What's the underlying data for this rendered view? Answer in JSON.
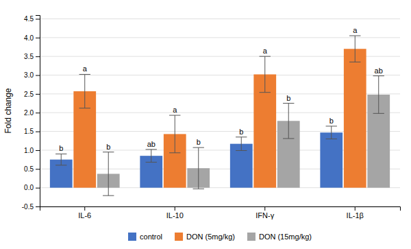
{
  "chart_data": {
    "type": "bar",
    "categories": [
      "IL-6",
      "IL-10",
      "IFN-γ",
      "IL-1β"
    ],
    "series": [
      {
        "name": "control",
        "color": "#4472C4",
        "values": [
          0.75,
          0.85,
          1.17,
          1.47
        ],
        "errors": [
          0.15,
          0.17,
          0.18,
          0.17
        ],
        "annotations": [
          "b",
          "ab",
          "b",
          "b"
        ]
      },
      {
        "name": "DON (5mg/kg)",
        "color": "#ED7D31",
        "values": [
          2.57,
          1.43,
          3.02,
          3.7
        ],
        "errors": [
          0.45,
          0.5,
          0.48,
          0.35
        ],
        "annotations": [
          "a",
          "a",
          "a",
          "a"
        ]
      },
      {
        "name": "DON (15mg/kg)",
        "color": "#A5A5A5",
        "values": [
          0.37,
          0.52,
          1.78,
          2.48
        ],
        "errors": [
          0.58,
          0.55,
          0.47,
          0.5
        ],
        "annotations": [
          "b",
          "b",
          "b",
          "ab"
        ]
      }
    ],
    "ylabel": "Fold change",
    "ylim": [
      -0.5,
      4.6
    ],
    "yticks": [
      -0.5,
      {
        "value": 0,
        "label": "0.0"
      },
      0.5,
      {
        "value": 1.0,
        "label": "1.0"
      },
      1.5,
      {
        "value": 2.0,
        "label": "2.0"
      },
      2.5,
      {
        "value": 3.0,
        "label": "3.0"
      },
      3.5,
      {
        "value": 4.0,
        "label": "4.0"
      },
      4.5
    ],
    "grid": true,
    "legend": "bottom"
  }
}
